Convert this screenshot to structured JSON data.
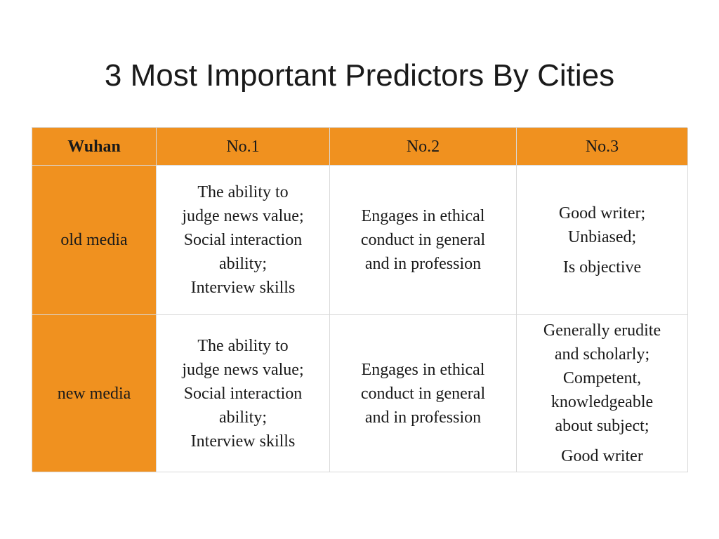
{
  "slide": {
    "title": "3 Most Important Predictors By Cities"
  },
  "table": {
    "corner_label": "Wuhan",
    "columns": [
      "No.1",
      "No.2",
      "No.3"
    ],
    "rows": [
      {
        "label": "old media",
        "no1": [
          "The ability to",
          "judge news value;",
          "Social interaction",
          "ability;",
          "Interview skills"
        ],
        "no2": [
          "Engages in ethical",
          "conduct in general",
          "and in profession"
        ],
        "no3": [
          "Good writer;",
          "Unbiased;",
          "Is objective"
        ]
      },
      {
        "label": "new media",
        "no1": [
          "The ability to",
          "judge news value;",
          "Social interaction",
          "ability;",
          "Interview skills"
        ],
        "no2": [
          "Engages in ethical",
          "conduct in general",
          "and in profession"
        ],
        "no3": [
          "Generally erudite",
          "and scholarly;",
          "Competent,",
          "knowledgeable",
          "about subject;",
          "Good writer"
        ]
      }
    ]
  },
  "colors": {
    "header_fill": "#f0911f",
    "cell_fill": "#ffffff",
    "grid_line": "#d9d9d9",
    "text": "#1a1a1a"
  }
}
